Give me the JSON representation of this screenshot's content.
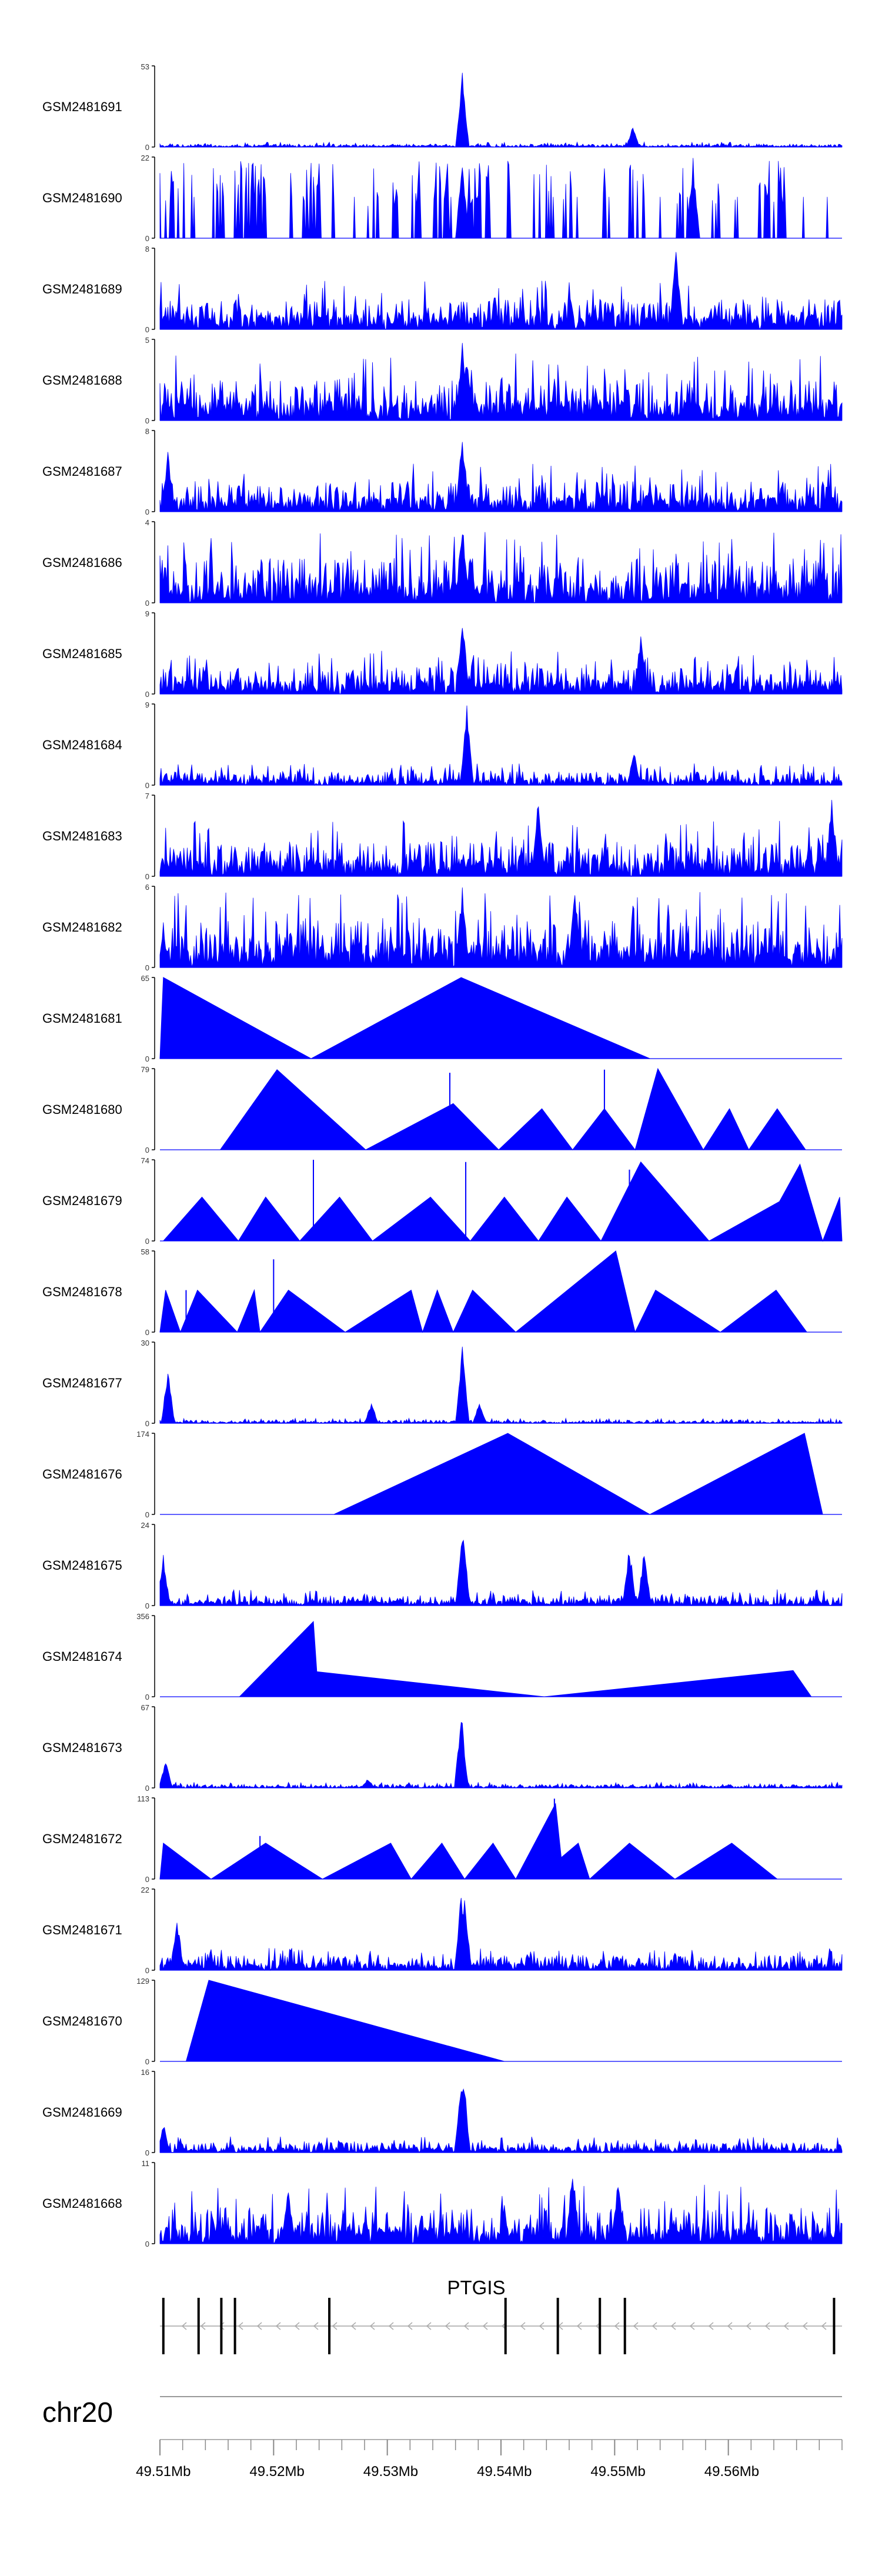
{
  "chart_data": {
    "type": "area",
    "title": "",
    "chromosome": "chr20",
    "gene": {
      "name": "PTGIS",
      "strand": "-",
      "exon_positions_mb": [
        49.51,
        49.5131,
        49.5151,
        49.5163,
        49.5246,
        49.5401,
        49.5447,
        49.5484,
        49.5506,
        49.569
      ]
    },
    "xaxis": {
      "range_mb": [
        49.5097,
        49.5697
      ],
      "tick_labels": [
        "49.51Mb",
        "49.52Mb",
        "49.53Mb",
        "49.54Mb",
        "49.55Mb",
        "49.56Mb"
      ],
      "tick_values_mb": [
        49.51,
        49.52,
        49.53,
        49.54,
        49.55,
        49.56
      ],
      "minor_tick_step_mb": 0.002
    },
    "tracks": [
      {
        "label": "GSM2481691",
        "ymax": 53,
        "kind": "signal",
        "base": 2,
        "peaks": [
          [
            49.5363,
            50
          ],
          [
            49.5513,
            14
          ]
        ]
      },
      {
        "label": "GSM2481690",
        "ymax": 22,
        "kind": "signal-sparse",
        "base": 14,
        "peaks": [
          [
            49.5363,
            22
          ],
          [
            49.5566,
            22
          ]
        ]
      },
      {
        "label": "GSM2481689",
        "ymax": 8,
        "kind": "signal",
        "base": 3,
        "peaks": [
          [
            49.5551,
            8
          ]
        ]
      },
      {
        "label": "GSM2481688",
        "ymax": 5,
        "kind": "signal",
        "base": 2.6,
        "peaks": [
          [
            49.5363,
            5
          ],
          [
            49.5367,
            4.2
          ]
        ]
      },
      {
        "label": "GSM2481687",
        "ymax": 8,
        "kind": "signal",
        "base": 3,
        "peaks": [
          [
            49.5363,
            8
          ],
          [
            49.5104,
            6
          ]
        ]
      },
      {
        "label": "GSM2481686",
        "ymax": 4,
        "kind": "signal",
        "base": 2.2,
        "peaks": [
          [
            49.5363,
            4
          ]
        ]
      },
      {
        "label": "GSM2481685",
        "ymax": 9,
        "kind": "signal",
        "base": 3,
        "peaks": [
          [
            49.5363,
            9
          ],
          [
            49.552,
            7
          ]
        ]
      },
      {
        "label": "GSM2481684",
        "ymax": 9,
        "kind": "signal",
        "base": 1.5,
        "peaks": [
          [
            49.5367,
            9
          ],
          [
            49.5514,
            4
          ]
        ]
      },
      {
        "label": "GSM2481683",
        "ymax": 7,
        "kind": "signal",
        "base": 3,
        "peaks": [
          [
            49.543,
            7
          ],
          [
            49.5688,
            7
          ]
        ]
      },
      {
        "label": "GSM2481682",
        "ymax": 6,
        "kind": "signal",
        "base": 3.5,
        "peaks": [
          [
            49.5462,
            6
          ],
          [
            49.5363,
            6
          ]
        ]
      },
      {
        "label": "GSM2481681",
        "ymax": 65,
        "kind": "triangles",
        "points": [
          [
            49.5097,
            0
          ],
          [
            49.51,
            65
          ],
          [
            49.523,
            0
          ],
          [
            49.5362,
            65
          ],
          [
            49.5528,
            0
          ]
        ]
      },
      {
        "label": "GSM2481680",
        "ymax": 79,
        "kind": "triangles",
        "points": [
          [
            49.515,
            0
          ],
          [
            49.52,
            78
          ],
          [
            49.5278,
            0
          ],
          [
            49.5355,
            45
          ],
          [
            49.5395,
            0
          ],
          [
            49.5433,
            40
          ],
          [
            49.546,
            0
          ],
          [
            49.5488,
            40
          ],
          [
            49.5515,
            0
          ],
          [
            49.5535,
            79
          ],
          [
            49.5575,
            0
          ],
          [
            49.5598,
            40
          ],
          [
            49.5615,
            0
          ],
          [
            49.564,
            40
          ],
          [
            49.5665,
            0
          ]
        ],
        "spikes": [
          [
            49.52,
            40
          ],
          [
            49.5352,
            75
          ],
          [
            49.5488,
            78
          ]
        ]
      },
      {
        "label": "GSM2481679",
        "ymax": 74,
        "kind": "triangles",
        "points": [
          [
            49.51,
            0
          ],
          [
            49.5134,
            40
          ],
          [
            49.5166,
            0
          ],
          [
            49.519,
            40
          ],
          [
            49.522,
            0
          ],
          [
            49.5255,
            40
          ],
          [
            49.5284,
            0
          ],
          [
            49.5335,
            40
          ],
          [
            49.537,
            0
          ],
          [
            49.54,
            40
          ],
          [
            49.543,
            0
          ],
          [
            49.5455,
            40
          ],
          [
            49.5485,
            0
          ],
          [
            49.552,
            72
          ],
          [
            49.558,
            0
          ],
          [
            49.5642,
            36
          ],
          [
            49.566,
            70
          ],
          [
            49.568,
            0
          ],
          [
            49.5695,
            40
          ],
          [
            49.5697,
            0
          ]
        ],
        "spikes": [
          [
            49.5232,
            74
          ],
          [
            49.5366,
            72
          ],
          [
            49.551,
            65
          ]
        ]
      },
      {
        "label": "GSM2481678",
        "ymax": 58,
        "kind": "triangles",
        "points": [
          [
            49.5097,
            0
          ],
          [
            49.5102,
            30
          ],
          [
            49.5115,
            0
          ],
          [
            49.513,
            30
          ],
          [
            49.5165,
            0
          ],
          [
            49.518,
            30
          ],
          [
            49.5185,
            0
          ],
          [
            49.521,
            30
          ],
          [
            49.526,
            0
          ],
          [
            49.5318,
            30
          ],
          [
            49.5328,
            0
          ],
          [
            49.5341,
            30
          ],
          [
            49.5355,
            0
          ],
          [
            49.5372,
            30
          ],
          [
            49.541,
            0
          ],
          [
            49.5498,
            58
          ],
          [
            49.5515,
            0
          ],
          [
            49.5533,
            30
          ],
          [
            49.559,
            0
          ],
          [
            49.5639,
            30
          ],
          [
            49.5666,
            0
          ]
        ],
        "spikes": [
          [
            49.5197,
            52
          ],
          [
            49.512,
            30
          ]
        ]
      },
      {
        "label": "GSM2481677",
        "ymax": 30,
        "kind": "signal",
        "base": 1.2,
        "peaks": [
          [
            49.5104,
            20
          ],
          [
            49.5363,
            29
          ],
          [
            49.5378,
            8
          ],
          [
            49.5283,
            8
          ]
        ]
      },
      {
        "label": "GSM2481676",
        "ymax": 174,
        "kind": "triangles",
        "points": [
          [
            49.525,
            0
          ],
          [
            49.5403,
            174
          ],
          [
            49.5528,
            0
          ],
          [
            49.5664,
            174
          ],
          [
            49.568,
            0
          ]
        ]
      },
      {
        "label": "GSM2481675",
        "ymax": 24,
        "kind": "signal",
        "base": 3,
        "peaks": [
          [
            49.51,
            15
          ],
          [
            49.5363,
            24
          ],
          [
            49.5364,
            20
          ],
          [
            49.551,
            18
          ],
          [
            49.5523,
            17
          ]
        ]
      },
      {
        "label": "GSM2481674",
        "ymax": 356,
        "kind": "triangles",
        "points": [
          [
            49.5167,
            0
          ],
          [
            49.5232,
            330
          ],
          [
            49.5235,
            110
          ],
          [
            49.5435,
            0
          ],
          [
            49.5654,
            115
          ],
          [
            49.567,
            0
          ]
        ]
      },
      {
        "label": "GSM2481673",
        "ymax": 67,
        "kind": "signal",
        "base": 3,
        "peaks": [
          [
            49.5362,
            65
          ],
          [
            49.5102,
            25
          ],
          [
            49.528,
            8
          ]
        ]
      },
      {
        "label": "GSM2481672",
        "ymax": 113,
        "kind": "triangles",
        "points": [
          [
            49.5097,
            0
          ],
          [
            49.51,
            50
          ],
          [
            49.5142,
            0
          ],
          [
            49.519,
            50
          ],
          [
            49.524,
            0
          ],
          [
            49.53,
            50
          ],
          [
            49.5318,
            0
          ],
          [
            49.5345,
            50
          ],
          [
            49.5365,
            0
          ],
          [
            49.539,
            50
          ],
          [
            49.541,
            0
          ],
          [
            49.5445,
            105
          ],
          [
            49.545,
            30
          ],
          [
            49.5465,
            50
          ],
          [
            49.5475,
            0
          ],
          [
            49.551,
            50
          ],
          [
            49.555,
            0
          ],
          [
            49.56,
            50
          ],
          [
            49.564,
            0
          ]
        ],
        "spikes": [
          [
            49.5185,
            60
          ],
          [
            49.5444,
            112
          ]
        ]
      },
      {
        "label": "GSM2481671",
        "ymax": 22,
        "kind": "signal",
        "base": 4,
        "peaks": [
          [
            49.5112,
            15
          ],
          [
            49.5362,
            22
          ],
          [
            49.5365,
            21
          ]
        ]
      },
      {
        "label": "GSM2481670",
        "ymax": 129,
        "kind": "triangles",
        "points": [
          [
            49.512,
            0
          ],
          [
            49.514,
            129
          ],
          [
            49.54,
            0
          ]
        ]
      },
      {
        "label": "GSM2481669",
        "ymax": 16,
        "kind": "signal",
        "base": 2,
        "peaks": [
          [
            49.5362,
            15
          ],
          [
            49.5364,
            16
          ],
          [
            49.51,
            6
          ]
        ]
      },
      {
        "label": "GSM2481668",
        "ymax": 11,
        "kind": "signal",
        "base": 5,
        "peaks": [
          [
            49.546,
            11
          ],
          [
            49.521,
            8
          ],
          [
            49.55,
            9
          ]
        ]
      }
    ]
  }
}
